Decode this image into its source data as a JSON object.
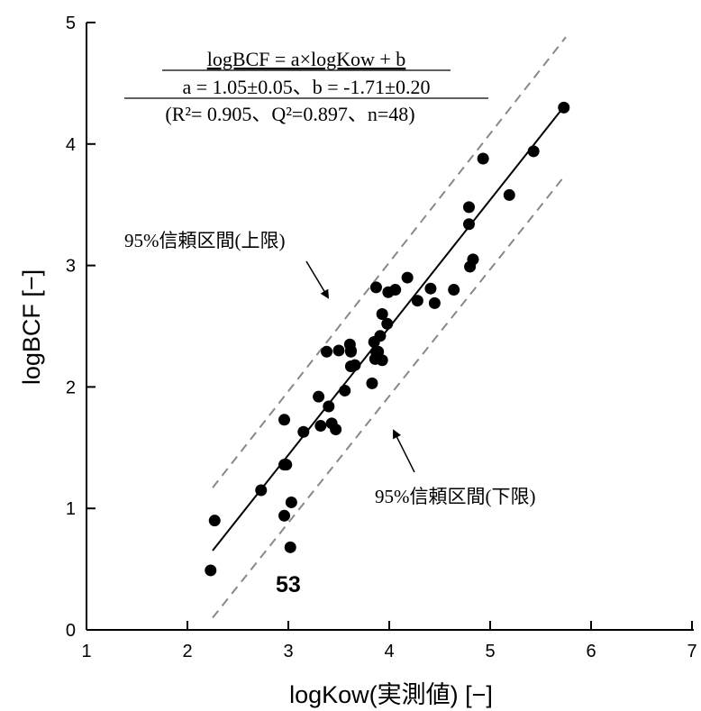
{
  "chart_data": {
    "type": "scatter",
    "xlabel": "logKow(実測値) [−]",
    "ylabel": "logBCF [−]",
    "xlim": [
      1,
      7
    ],
    "ylim": [
      0,
      5
    ],
    "xticks": [
      "1",
      "2",
      "3",
      "4",
      "5",
      "6",
      "7"
    ],
    "yticks": [
      "0",
      "1",
      "2",
      "3",
      "4",
      "5"
    ],
    "equation": {
      "line1": "logBCF = a×logKow + b",
      "line2": "a = 1.05±0.05、b = -1.71±0.20",
      "line3": "(R²= 0.905、Q²=0.897、n=48)"
    },
    "fit_line": {
      "slope": 1.05,
      "intercept": -1.71,
      "x_range": [
        2.25,
        5.75
      ]
    },
    "ci_upper": {
      "x_range": [
        2.25,
        5.75
      ],
      "y_range": [
        1.17,
        4.88
      ]
    },
    "ci_lower": {
      "x_range": [
        2.25,
        5.75
      ],
      "y_range": [
        0.1,
        3.75
      ]
    },
    "annotations": {
      "upper_label": "95%信頼区間(上限)",
      "lower_label": "95%信頼区間(下限)",
      "highlight_label": "53"
    },
    "points": [
      [
        2.23,
        0.49
      ],
      [
        2.27,
        0.9
      ],
      [
        2.73,
        1.15
      ],
      [
        2.96,
        0.94
      ],
      [
        2.96,
        1.73
      ],
      [
        2.98,
        1.36
      ],
      [
        3.02,
        0.68
      ],
      [
        3.03,
        1.05
      ],
      [
        3.15,
        1.63
      ],
      [
        3.3,
        1.92
      ],
      [
        3.32,
        1.68
      ],
      [
        3.38,
        2.29
      ],
      [
        3.4,
        1.84
      ],
      [
        3.43,
        1.7
      ],
      [
        3.47,
        1.65
      ],
      [
        3.5,
        2.3
      ],
      [
        3.56,
        1.97
      ],
      [
        3.61,
        2.35
      ],
      [
        3.62,
        2.3
      ],
      [
        3.62,
        2.17
      ],
      [
        3.66,
        2.18
      ],
      [
        3.83,
        2.03
      ],
      [
        3.85,
        2.37
      ],
      [
        3.86,
        2.23
      ],
      [
        3.87,
        2.82
      ],
      [
        3.89,
        2.29
      ],
      [
        3.91,
        2.42
      ],
      [
        3.93,
        2.6
      ],
      [
        3.93,
        2.22
      ],
      [
        3.98,
        2.52
      ],
      [
        3.99,
        2.78
      ],
      [
        4.06,
        2.8
      ],
      [
        4.18,
        2.9
      ],
      [
        4.28,
        2.71
      ],
      [
        4.41,
        2.81
      ],
      [
        4.45,
        2.69
      ],
      [
        4.64,
        2.8
      ],
      [
        4.79,
        3.34
      ],
      [
        4.79,
        3.48
      ],
      [
        4.8,
        2.99
      ],
      [
        4.83,
        3.05
      ],
      [
        4.93,
        3.88
      ],
      [
        5.19,
        3.58
      ],
      [
        5.43,
        3.94
      ],
      [
        5.73,
        4.3
      ],
      [
        2.96,
        1.36
      ],
      [
        3.62,
        2.29
      ],
      [
        3.87,
        2.29
      ]
    ],
    "colors": {
      "points": "#000000",
      "fit": "#000000",
      "ci": "#888888"
    }
  }
}
